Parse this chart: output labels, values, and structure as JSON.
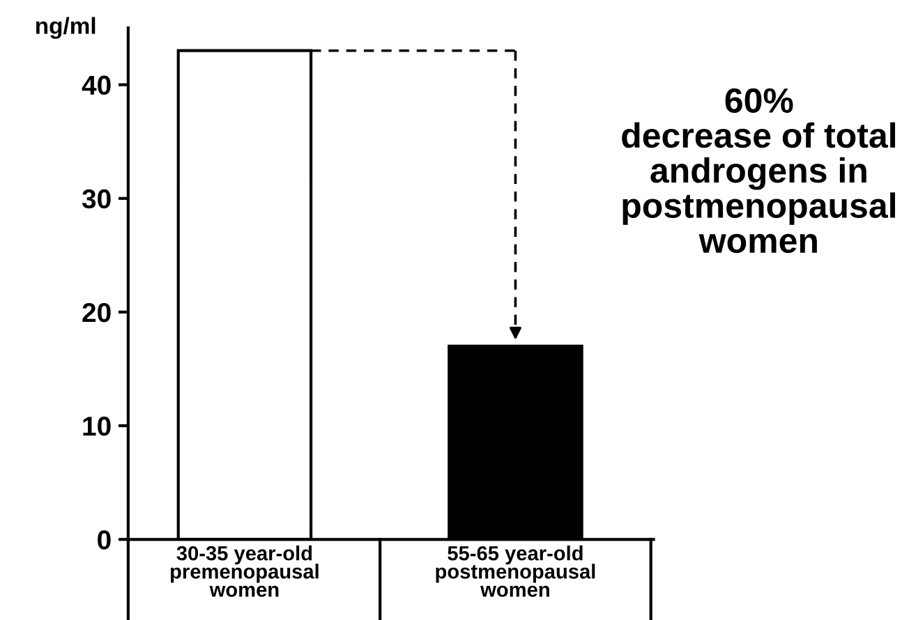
{
  "chart_data": {
    "type": "bar",
    "ylabel": "ng/ml",
    "categories": [
      "30-35 year-old\npremenopausal\nwomen",
      "55-65 year-old\npostmenopausal\nwomen"
    ],
    "values": [
      43,
      17
    ],
    "colors": [
      "#ffffff",
      "#000000"
    ],
    "ylim": [
      0,
      45
    ],
    "yticks": [
      0,
      10,
      20,
      30,
      40
    ],
    "grid": false,
    "annotations": [
      "60%\ndecrease of total\nandrogens in\npostmenopausal\nwomen"
    ]
  }
}
